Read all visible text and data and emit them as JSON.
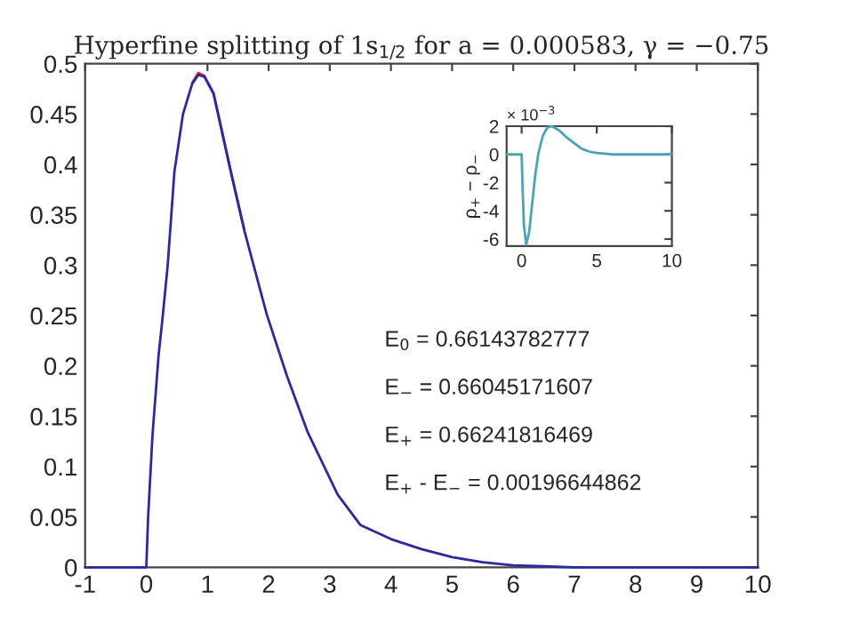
{
  "chart_data": [
    {
      "type": "line",
      "title": "Hyperfine splitting of 1s$_{1/2}$ for a = 0.000583, γ = −0.75",
      "x": [
        -1,
        0,
        0.03,
        0.1,
        0.2,
        0.27,
        0.35,
        0.46,
        0.6,
        0.75,
        0.85,
        0.95,
        1.1,
        1.38,
        1.6,
        1.97,
        2.3,
        2.64,
        3.13,
        3.5,
        4,
        4.5,
        5,
        5.5,
        6,
        6.5,
        7,
        8,
        9,
        10
      ],
      "series": [
        {
          "color": "#d0304a",
          "values": [
            null,
            null,
            null,
            null,
            null,
            null,
            null,
            null,
            null,
            0.481,
            0.491,
            0.488,
            0.471,
            0.394,
            0.336,
            null,
            null,
            null,
            null,
            null,
            null,
            null,
            null,
            null,
            null,
            null,
            null,
            null,
            null,
            null
          ]
        },
        {
          "color": "#2a2a9a",
          "values": [
            0,
            0,
            0.05,
            0.13,
            0.21,
            0.25,
            0.3,
            0.393,
            0.45,
            0.48,
            0.489,
            0.487,
            0.47,
            0.393,
            0.335,
            0.251,
            0.19,
            0.134,
            0.072,
            0.042,
            0.028,
            0.018,
            0.01,
            0.005,
            0.002,
            0.001,
            0,
            0,
            0,
            0
          ]
        }
      ],
      "xlim": [
        -1,
        10
      ],
      "xticks": [
        -1,
        0,
        1,
        2,
        3,
        4,
        5,
        6,
        7,
        8,
        9,
        10
      ],
      "ylim": [
        0,
        0.5
      ],
      "yticks": [
        0,
        0.05,
        0.1,
        0.15,
        0.2,
        0.25,
        0.3,
        0.35,
        0.4,
        0.45,
        0.5
      ],
      "annotations": [
        "E$_{0}$ = 0.66143782777",
        "E$_{−}$ = 0.66045171607",
        "E$_{+}$ = 0.66241816469",
        "E$_{+}$ - E$_{−}$ = 0.00196644862"
      ]
    },
    {
      "type": "line",
      "ylabel": "ρ$_{+}$ − ρ$_{−}$",
      "x": [
        -1,
        0,
        0.05,
        0.15,
        0.3,
        0.5,
        0.7,
        0.9,
        1.1,
        1.4,
        1.7,
        2,
        2.5,
        3,
        3.5,
        4,
        4.5,
        5,
        6,
        7,
        10
      ],
      "series": [
        {
          "color": "#4aa3b8",
          "values": [
            0,
            0,
            -2,
            -5,
            -6.4,
            -5.5,
            -3.5,
            -1.5,
            0,
            1.3,
            1.9,
            2,
            1.7,
            1.2,
            0.8,
            0.4,
            0.2,
            0.1,
            0,
            0,
            0
          ]
        }
      ],
      "xlim": [
        -1,
        10
      ],
      "xticks": [
        0,
        5,
        10
      ],
      "ylim": [
        -6.5,
        2
      ],
      "yticks": [
        -6,
        -4,
        -2,
        0,
        2
      ],
      "annotations": [
        "× 10$^{−3}$"
      ]
    }
  ]
}
